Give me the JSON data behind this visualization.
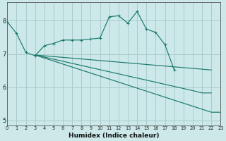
{
  "bg_color": "#cce8e8",
  "grid_color": "#aacccc",
  "line_color": "#1a7a6e",
  "xlabel": "Humidex (Indice chaleur)",
  "xlim": [
    0,
    23
  ],
  "ylim": [
    4.85,
    8.55
  ],
  "yticks": [
    5,
    6,
    7,
    8
  ],
  "xticks": [
    0,
    1,
    2,
    3,
    4,
    5,
    6,
    7,
    8,
    9,
    10,
    11,
    12,
    13,
    14,
    15,
    16,
    17,
    18,
    19,
    20,
    21,
    22,
    23
  ],
  "series": [
    {
      "x": [
        0,
        1,
        2,
        3,
        4,
        5,
        6,
        7,
        8,
        9,
        10,
        11,
        12,
        13,
        14,
        15,
        16,
        17,
        18
      ],
      "y": [
        7.97,
        7.62,
        7.05,
        6.95,
        7.25,
        7.32,
        7.42,
        7.42,
        7.42,
        7.45,
        7.48,
        8.12,
        8.15,
        7.93,
        8.28,
        7.75,
        7.65,
        7.28,
        6.52
      ]
    },
    {
      "x": [
        3,
        22
      ],
      "y": [
        6.97,
        6.52
      ]
    },
    {
      "x": [
        3,
        20,
        21,
        22
      ],
      "y": [
        6.97,
        5.9,
        5.83,
        5.83
      ]
    },
    {
      "x": [
        3,
        22,
        23
      ],
      "y": [
        6.97,
        5.25,
        5.25
      ]
    }
  ]
}
